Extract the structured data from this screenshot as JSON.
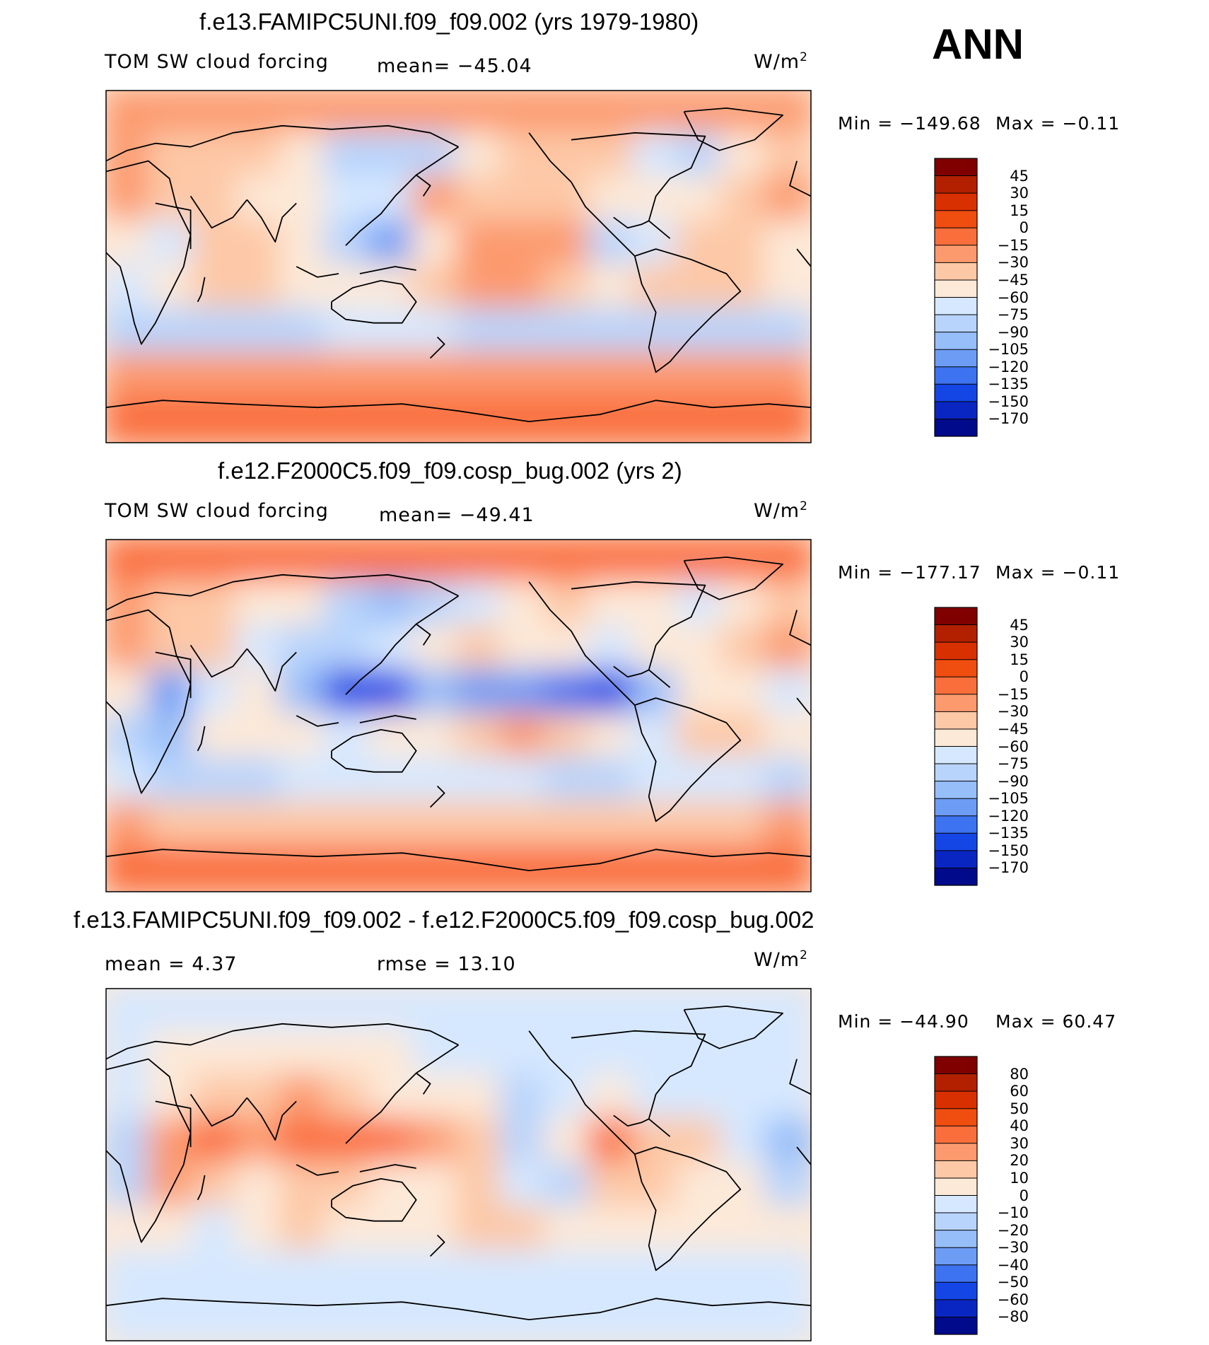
{
  "season_label": "ANN",
  "panels": [
    {
      "title": "f.e13.FAMIPC5UNI.f09_f09.002 (yrs 1979-1980)",
      "left_text": "TOM SW cloud forcing",
      "mid_text": "mean= −45.04",
      "unit_base": "W/m",
      "unit_exp": "2",
      "min_text": "Min = −149.68",
      "max_text": "Max =  −0.11"
    },
    {
      "title": "f.e12.F2000C5.f09_f09.cosp_bug.002 (yrs 2)",
      "left_text": "TOM SW cloud forcing",
      "mid_text": "mean= −49.41",
      "unit_base": "W/m",
      "unit_exp": "2",
      "min_text": "Min = −177.17",
      "max_text": "Max =  −0.11"
    },
    {
      "title": "f.e13.FAMIPC5UNI.f09_f09.002 - f.e12.F2000C5.f09_f09.cosp_bug.002",
      "left_text": "mean =    4.37",
      "mid_text": "rmse =   13.10",
      "unit_base": "W/m",
      "unit_exp": "2",
      "min_text": "Min = −44.90",
      "max_text": "Max =  60.47"
    }
  ],
  "chart_data": [
    {
      "type": "heatmap",
      "title": "f.e13.FAMIPC5UNI.f09_f09.002 (yrs 1979-1980)",
      "variable": "TOM SW cloud forcing",
      "units": "W/m2",
      "mean": -45.04,
      "min": -149.68,
      "max": -0.11,
      "contour_levels": [
        -170,
        -150,
        -135,
        -120,
        -105,
        -90,
        -75,
        -60,
        -45,
        -30,
        -15,
        0,
        15,
        30,
        45
      ],
      "colorbar_labels": [
        "45",
        "30",
        "15",
        "0",
        "−15",
        "−30",
        "−45",
        "−60",
        "−75",
        "−90",
        "−105",
        "−120",
        "−135",
        "−150",
        "−170"
      ],
      "colors": [
        "#800000",
        "#b22000",
        "#d93000",
        "#f04d10",
        "#fa6e3c",
        "#fc9a6e",
        "#fdc8a6",
        "#fde9d8",
        "#d6e8ff",
        "#b8d4fc",
        "#96bef9",
        "#6d9cf5",
        "#3d72f0",
        "#1446e6",
        "#0a26c2",
        "#000a8a"
      ],
      "field": [
        [
          -20,
          -20,
          -18,
          -18,
          -20,
          -22,
          -25,
          -25,
          -22,
          -20,
          -18,
          -18,
          -18,
          -20,
          -22,
          -20
        ],
        [
          -30,
          -35,
          -40,
          -45,
          -50,
          -80,
          -90,
          -80,
          -60,
          -45,
          -35,
          -40,
          -70,
          -80,
          -60,
          -40
        ],
        [
          -25,
          -45,
          -40,
          -50,
          -60,
          -70,
          -65,
          -30,
          -35,
          -40,
          -45,
          -60,
          -50,
          -55,
          -45,
          -30
        ],
        [
          -60,
          -70,
          -45,
          -40,
          -50,
          -90,
          -110,
          -60,
          -30,
          -20,
          -25,
          -90,
          -70,
          -45,
          -40,
          -60
        ],
        [
          -70,
          -60,
          -40,
          -45,
          -55,
          -60,
          -50,
          -45,
          -30,
          -25,
          -35,
          -55,
          -45,
          -40,
          -35,
          -55
        ],
        [
          -80,
          -90,
          -85,
          -80,
          -80,
          -75,
          -70,
          -75,
          -80,
          -85,
          -90,
          -85,
          -80,
          -80,
          -85,
          -90
        ],
        [
          -30,
          -25,
          -25,
          -25,
          -25,
          -25,
          -25,
          -25,
          -25,
          -25,
          -25,
          -25,
          -25,
          -25,
          -25,
          -30
        ],
        [
          -5,
          -5,
          -5,
          -5,
          -5,
          -5,
          -5,
          -5,
          -5,
          -5,
          -5,
          -5,
          -5,
          -5,
          -5,
          -5
        ]
      ]
    },
    {
      "type": "heatmap",
      "title": "f.e12.F2000C5.f09_f09.cosp_bug.002 (yrs 2)",
      "variable": "TOM SW cloud forcing",
      "units": "W/m2",
      "mean": -49.41,
      "min": -177.17,
      "max": -0.11,
      "contour_levels": [
        -170,
        -150,
        -135,
        -120,
        -105,
        -90,
        -75,
        -60,
        -45,
        -30,
        -15,
        0,
        15,
        30,
        45
      ],
      "colorbar_labels": [
        "45",
        "30",
        "15",
        "0",
        "−15",
        "−30",
        "−45",
        "−60",
        "−75",
        "−90",
        "−105",
        "−120",
        "−135",
        "−150",
        "−170"
      ],
      "colors": [
        "#800000",
        "#b22000",
        "#d93000",
        "#f04d10",
        "#fa6e3c",
        "#fc9a6e",
        "#fdc8a6",
        "#fde9d8",
        "#d6e8ff",
        "#b8d4fc",
        "#96bef9",
        "#6d9cf5",
        "#3d72f0",
        "#1446e6",
        "#0a26c2",
        "#000a8a"
      ],
      "field": [
        [
          -15,
          -15,
          -15,
          -15,
          -15,
          -15,
          -15,
          -15,
          -15,
          -15,
          -15,
          -15,
          -15,
          -15,
          -15,
          -15
        ],
        [
          -30,
          -40,
          -45,
          -50,
          -60,
          -85,
          -95,
          -90,
          -70,
          -50,
          -40,
          -50,
          -60,
          -70,
          -55,
          -40
        ],
        [
          -20,
          -40,
          -35,
          -70,
          -90,
          -80,
          -70,
          -50,
          -45,
          -50,
          -60,
          -70,
          -55,
          -50,
          -35,
          -25
        ],
        [
          -60,
          -120,
          -70,
          -60,
          -100,
          -140,
          -150,
          -100,
          -120,
          -120,
          -130,
          -150,
          -100,
          -60,
          -55,
          -75
        ],
        [
          -90,
          -100,
          -55,
          -50,
          -60,
          -70,
          -60,
          -55,
          -40,
          -30,
          -35,
          -60,
          -70,
          -45,
          -40,
          -60
        ],
        [
          -75,
          -80,
          -85,
          -80,
          -75,
          -70,
          -70,
          -65,
          -70,
          -75,
          -80,
          -80,
          -75,
          -75,
          -75,
          -80
        ],
        [
          -30,
          -35,
          -35,
          -40,
          -40,
          -40,
          -40,
          -40,
          -40,
          -40,
          -40,
          -40,
          -40,
          -35,
          -35,
          -30
        ],
        [
          -5,
          -5,
          -5,
          -5,
          -5,
          -5,
          -5,
          -5,
          -5,
          -5,
          -5,
          -5,
          -5,
          -5,
          -5,
          -5
        ]
      ]
    },
    {
      "type": "heatmap",
      "title": "f.e13.FAMIPC5UNI.f09_f09.002 - f.e12.F2000C5.f09_f09.cosp_bug.002",
      "units": "W/m2",
      "mean": 4.37,
      "rmse": 13.1,
      "min": -44.9,
      "max": 60.47,
      "contour_levels": [
        -80,
        -60,
        -50,
        -40,
        -30,
        -20,
        -10,
        0,
        10,
        20,
        30,
        40,
        50,
        60,
        80
      ],
      "colorbar_labels": [
        "80",
        "60",
        "50",
        "40",
        "30",
        "20",
        "10",
        "0",
        "−10",
        "−20",
        "−30",
        "−40",
        "−50",
        "−60",
        "−80"
      ],
      "colors": [
        "#800000",
        "#b22000",
        "#d93000",
        "#f04d10",
        "#fa6e3c",
        "#fc9a6e",
        "#fdc8a6",
        "#fde9d8",
        "#d6e8ff",
        "#b8d4fc",
        "#96bef9",
        "#6d9cf5",
        "#3d72f0",
        "#1446e6",
        "#0a26c2",
        "#000a8a"
      ],
      "field": [
        [
          -5,
          -5,
          -8,
          -5,
          -5,
          -5,
          -8,
          -5,
          -5,
          -5,
          -5,
          -8,
          -5,
          -5,
          -5,
          -5
        ],
        [
          -5,
          5,
          5,
          3,
          5,
          5,
          5,
          -3,
          -5,
          -10,
          -5,
          -10,
          -8,
          -8,
          -5,
          -5
        ],
        [
          -10,
          5,
          10,
          15,
          20,
          10,
          5,
          5,
          5,
          -15,
          -5,
          5,
          -10,
          -5,
          -5,
          -10
        ],
        [
          -20,
          25,
          30,
          25,
          30,
          35,
          30,
          25,
          10,
          -20,
          5,
          35,
          15,
          10,
          -10,
          -25
        ],
        [
          -15,
          20,
          15,
          5,
          10,
          10,
          5,
          5,
          10,
          -5,
          -20,
          10,
          10,
          5,
          0,
          -15
        ],
        [
          5,
          5,
          -5,
          5,
          10,
          5,
          0,
          5,
          10,
          10,
          5,
          5,
          5,
          5,
          5,
          5
        ],
        [
          -5,
          -5,
          -5,
          -5,
          -5,
          -5,
          -5,
          -5,
          -5,
          -5,
          -5,
          -5,
          -5,
          -5,
          -5,
          -5
        ],
        [
          -8,
          -5,
          -5,
          -5,
          -5,
          -5,
          -5,
          -5,
          -5,
          -5,
          -5,
          -5,
          -5,
          -5,
          -5,
          -8
        ]
      ]
    }
  ]
}
